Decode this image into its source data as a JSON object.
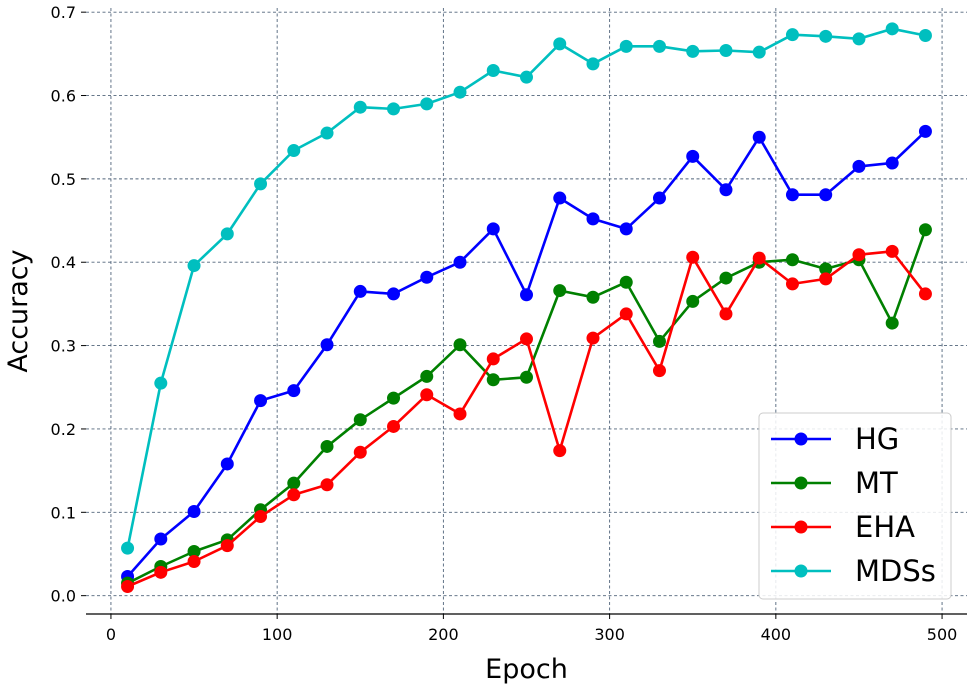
{
  "chart_data": {
    "type": "line",
    "title": "",
    "xlabel": "Epoch",
    "ylabel": "Accuracy",
    "xlim": [
      -15,
      515
    ],
    "ylim": [
      -0.022,
      0.705
    ],
    "xticks": [
      0,
      100,
      200,
      300,
      400,
      500
    ],
    "yticks": [
      0.0,
      0.1,
      0.2,
      0.3,
      0.4,
      0.5,
      0.6,
      0.7
    ],
    "x": [
      10,
      30,
      50,
      70,
      90,
      110,
      130,
      150,
      170,
      190,
      210,
      230,
      250,
      270,
      290,
      310,
      330,
      350,
      370,
      390,
      410,
      430,
      450,
      470,
      490
    ],
    "grid": true,
    "legend_position": "lower-right",
    "series": [
      {
        "name": "HG",
        "color": "#0000ff",
        "values": [
          0.023,
          0.068,
          0.101,
          0.158,
          0.234,
          0.246,
          0.301,
          0.365,
          0.362,
          0.382,
          0.4,
          0.44,
          0.361,
          0.477,
          0.452,
          0.44,
          0.477,
          0.527,
          0.487,
          0.55,
          0.481,
          0.481,
          0.515,
          0.519,
          0.557
        ]
      },
      {
        "name": "MT",
        "color": "#008000",
        "values": [
          0.015,
          0.035,
          0.053,
          0.067,
          0.103,
          0.135,
          0.179,
          0.211,
          0.237,
          0.263,
          0.301,
          0.259,
          0.262,
          0.366,
          0.358,
          0.376,
          0.305,
          0.353,
          0.381,
          0.4,
          0.403,
          0.392,
          0.403,
          0.327,
          0.439
        ]
      },
      {
        "name": "EHA",
        "color": "#ff0000",
        "values": [
          0.011,
          0.028,
          0.041,
          0.06,
          0.095,
          0.121,
          0.133,
          0.172,
          0.203,
          0.241,
          0.218,
          0.284,
          0.308,
          0.174,
          0.309,
          0.338,
          0.27,
          0.406,
          0.338,
          0.405,
          0.374,
          0.38,
          0.409,
          0.413,
          0.362
        ]
      },
      {
        "name": "MDSs",
        "color": "#00bfbf",
        "values": [
          0.057,
          0.255,
          0.396,
          0.434,
          0.494,
          0.534,
          0.555,
          0.586,
          0.584,
          0.59,
          0.604,
          0.63,
          0.622,
          0.662,
          0.638,
          0.659,
          0.659,
          0.653,
          0.654,
          0.652,
          0.673,
          0.671,
          0.668,
          0.68,
          0.672
        ]
      }
    ]
  }
}
